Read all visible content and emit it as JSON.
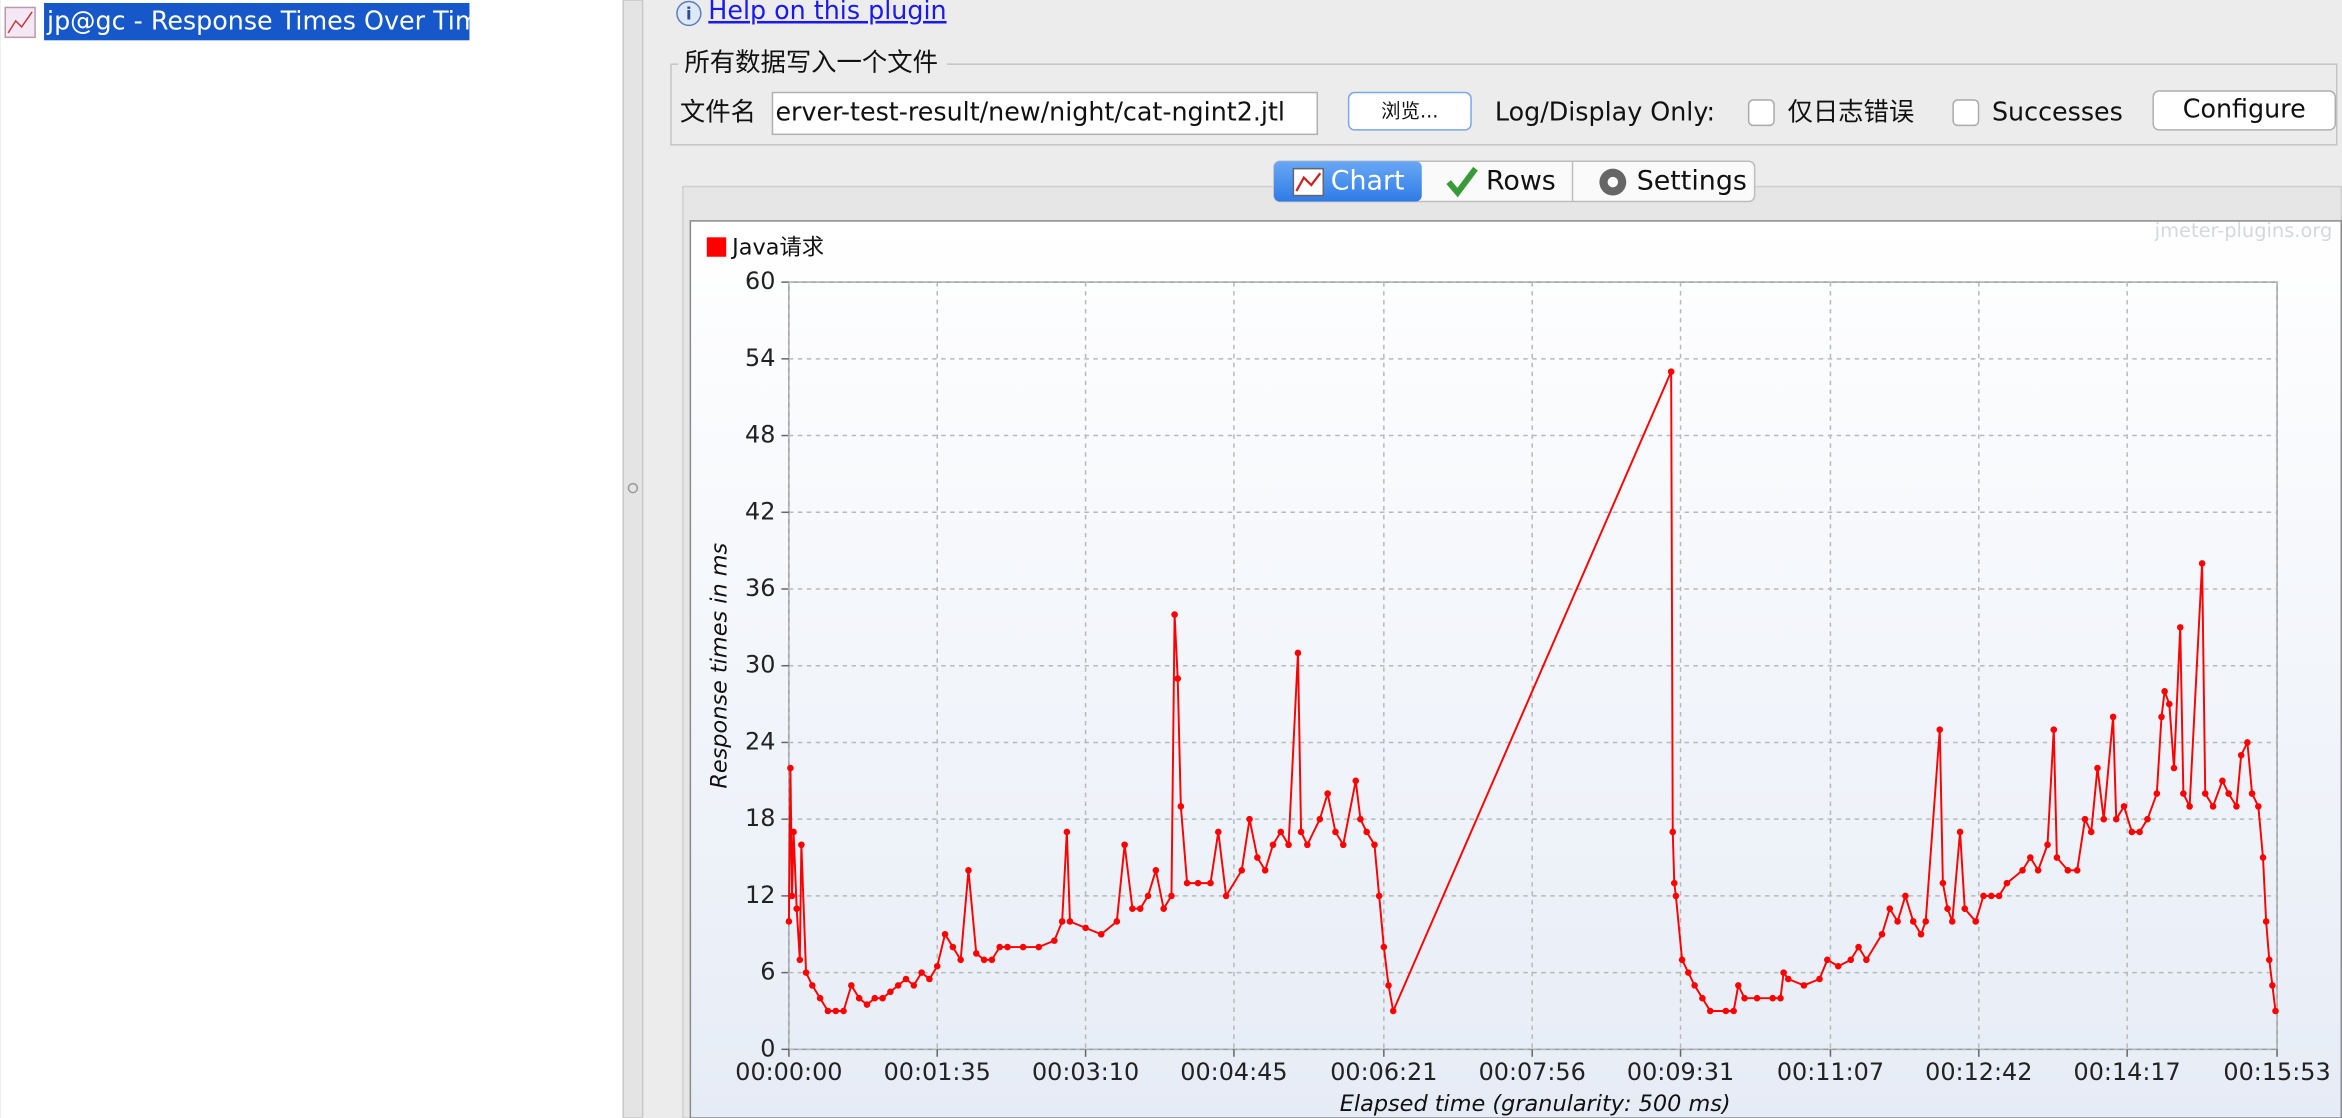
{
  "tree": {
    "selected_item": "jp@gc - Response Times Over Time"
  },
  "plugin": {
    "help_link": "Help on this plugin",
    "file_group": {
      "title": "所有数据写入一个文件",
      "filename_label": "文件名",
      "filename_value": "erver-test-result/new/night/cat-ngint2.jtl",
      "browse_button": "浏览...",
      "log_display_label": "Log/Display Only:",
      "errors_checkbox": "仅日志错误",
      "successes_checkbox": "Successes",
      "configure_button": "Configure"
    },
    "tabs": [
      "Chart",
      "Rows",
      "Settings"
    ]
  },
  "chart_data": {
    "type": "line",
    "watermark": "jmeter-plugins.org",
    "y_label": "Response times in ms",
    "x_label": "Elapsed time (granularity: 500 ms)",
    "x": [
      0,
      1,
      2,
      3,
      5,
      7,
      8,
      11,
      15,
      20,
      25,
      30,
      35,
      40,
      45,
      50,
      55,
      60,
      65,
      70,
      75,
      80,
      85,
      90,
      95,
      100,
      105,
      110,
      115,
      120,
      125,
      130,
      135,
      140,
      150,
      160,
      170,
      175,
      178,
      180,
      190,
      200,
      210,
      215,
      220,
      225,
      230,
      235,
      240,
      245,
      247,
      249,
      251,
      255,
      262,
      270,
      275,
      280,
      290,
      295,
      300,
      305,
      310,
      315,
      320,
      326,
      328,
      332,
      340,
      345,
      350,
      355,
      363,
      366,
      370,
      375,
      378,
      381,
      384,
      387,
      565,
      566,
      567,
      568,
      572,
      576,
      580,
      585,
      590,
      600,
      605,
      608,
      612,
      620,
      630,
      635,
      637,
      640,
      650,
      660,
      665,
      672,
      680,
      685,
      690,
      700,
      705,
      710,
      715,
      720,
      725,
      728,
      737,
      739,
      742,
      745,
      750,
      753,
      760,
      765,
      770,
      775,
      780,
      790,
      795,
      800,
      806,
      810,
      812,
      819,
      825,
      830,
      834,
      838,
      842,
      848,
      850,
      855,
      860,
      865,
      870,
      876,
      879,
      881,
      884,
      887,
      891,
      893,
      897,
      905,
      907,
      912,
      918,
      922,
      927,
      930,
      934,
      937,
      941,
      944,
      946,
      948,
      950,
      952
    ],
    "series": [
      {
        "name": "Java请求",
        "color": "#ff0000",
        "values": [
          10,
          22,
          12,
          17,
          11,
          7,
          16,
          6,
          5,
          4,
          3,
          3,
          3,
          5,
          4,
          3.5,
          4,
          4,
          4.5,
          5,
          5.5,
          5,
          6,
          5.5,
          6.5,
          9,
          8,
          7,
          14,
          7.5,
          7,
          7,
          8,
          8,
          8,
          8,
          8.5,
          10,
          17,
          10,
          9.5,
          9,
          10,
          16,
          11,
          11,
          12,
          14,
          11,
          12,
          34,
          29,
          19,
          13,
          13,
          13,
          17,
          12,
          14,
          18,
          15,
          14,
          16,
          17,
          16,
          31,
          17,
          16,
          18,
          20,
          17,
          16,
          21,
          18,
          17,
          16,
          12,
          8,
          5,
          3,
          53,
          17,
          13,
          12,
          7,
          6,
          5,
          4,
          3,
          3,
          3,
          5,
          4,
          4,
          4,
          4,
          6,
          5.5,
          5,
          5.5,
          7,
          6.5,
          7,
          8,
          7,
          9,
          11,
          10,
          12,
          10,
          9,
          10,
          25,
          13,
          11,
          10,
          17,
          11,
          10,
          12,
          12,
          12,
          13,
          14,
          15,
          14,
          16,
          25,
          15,
          14,
          14,
          18,
          17,
          22,
          18,
          26,
          18,
          19,
          17,
          17,
          18,
          20,
          26,
          28,
          27,
          22,
          33,
          20,
          19,
          38,
          20,
          19,
          21,
          20,
          19,
          23,
          24,
          20,
          19,
          15,
          10,
          7,
          5,
          3
        ]
      }
    ],
    "xlim": [
      0,
      953
    ],
    "ylim": [
      0,
      60
    ],
    "xticks": [
      {
        "value": 0,
        "label": "00:00:00"
      },
      {
        "value": 95,
        "label": "00:01:35"
      },
      {
        "value": 190,
        "label": "00:03:10"
      },
      {
        "value": 285,
        "label": "00:04:45"
      },
      {
        "value": 381,
        "label": "00:06:21"
      },
      {
        "value": 476,
        "label": "00:07:56"
      },
      {
        "value": 571,
        "label": "00:09:31"
      },
      {
        "value": 667,
        "label": "00:11:07"
      },
      {
        "value": 762,
        "label": "00:12:42"
      },
      {
        "value": 857,
        "label": "00:14:17"
      },
      {
        "value": 953,
        "label": "00:15:53"
      }
    ],
    "yticks": [
      0,
      6,
      12,
      18,
      24,
      30,
      36,
      42,
      48,
      54,
      60
    ],
    "grid": true
  }
}
